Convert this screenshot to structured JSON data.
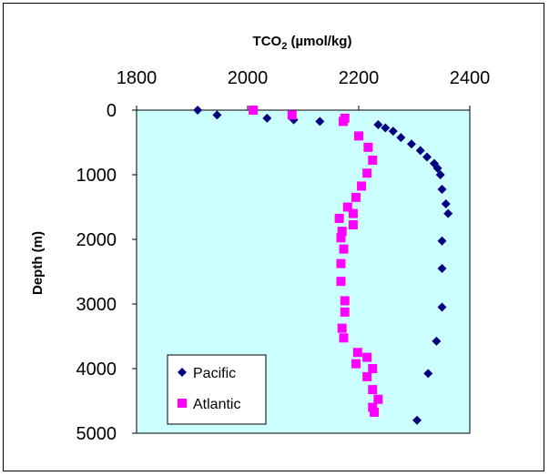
{
  "chart_data": {
    "type": "scatter",
    "title": "TCO",
    "title_sub": "2",
    "title_unit": " (µmol/kg)",
    "ylabel": "Depth (m)",
    "xlim": [
      1800,
      2400
    ],
    "ylim": [
      0,
      5000
    ],
    "x_ticks": [
      1800,
      2000,
      2200,
      2400
    ],
    "y_ticks": [
      0,
      1000,
      2000,
      3000,
      4000,
      5000
    ],
    "x_axis_position": "top",
    "y_axis_inverted": true,
    "grid": false,
    "legend_position": "bottom-left",
    "plot_background": "#ccffff",
    "series": [
      {
        "name": "Pacific",
        "marker": "diamond",
        "color": "#000080",
        "points": [
          [
            1910,
            0
          ],
          [
            1945,
            75
          ],
          [
            2035,
            125
          ],
          [
            2083,
            150
          ],
          [
            2130,
            175
          ],
          [
            2235,
            225
          ],
          [
            2248,
            275
          ],
          [
            2262,
            325
          ],
          [
            2276,
            425
          ],
          [
            2295,
            525
          ],
          [
            2311,
            625
          ],
          [
            2323,
            725
          ],
          [
            2336,
            825
          ],
          [
            2342,
            900
          ],
          [
            2347,
            1000
          ],
          [
            2350,
            1225
          ],
          [
            2357,
            1450
          ],
          [
            2361,
            1600
          ],
          [
            2350,
            2025
          ],
          [
            2350,
            2450
          ],
          [
            2350,
            3050
          ],
          [
            2340,
            3575
          ],
          [
            2325,
            4075
          ],
          [
            2305,
            4800
          ]
        ]
      },
      {
        "name": "Atlantic",
        "marker": "square",
        "color": "#ff00ff",
        "points": [
          [
            2010,
            0
          ],
          [
            2080,
            75
          ],
          [
            2175,
            125
          ],
          [
            2172,
            175
          ],
          [
            2200,
            400
          ],
          [
            2217,
            575
          ],
          [
            2225,
            775
          ],
          [
            2215,
            975
          ],
          [
            2205,
            1175
          ],
          [
            2195,
            1350
          ],
          [
            2180,
            1500
          ],
          [
            2190,
            1600
          ],
          [
            2165,
            1675
          ],
          [
            2190,
            1775
          ],
          [
            2170,
            1875
          ],
          [
            2168,
            1975
          ],
          [
            2173,
            2150
          ],
          [
            2168,
            2375
          ],
          [
            2168,
            2650
          ],
          [
            2175,
            2950
          ],
          [
            2175,
            3125
          ],
          [
            2170,
            3375
          ],
          [
            2173,
            3525
          ],
          [
            2198,
            3750
          ],
          [
            2215,
            3825
          ],
          [
            2195,
            3925
          ],
          [
            2225,
            4000
          ],
          [
            2215,
            4125
          ],
          [
            2225,
            4325
          ],
          [
            2235,
            4475
          ],
          [
            2225,
            4600
          ],
          [
            2228,
            4675
          ]
        ]
      }
    ]
  }
}
